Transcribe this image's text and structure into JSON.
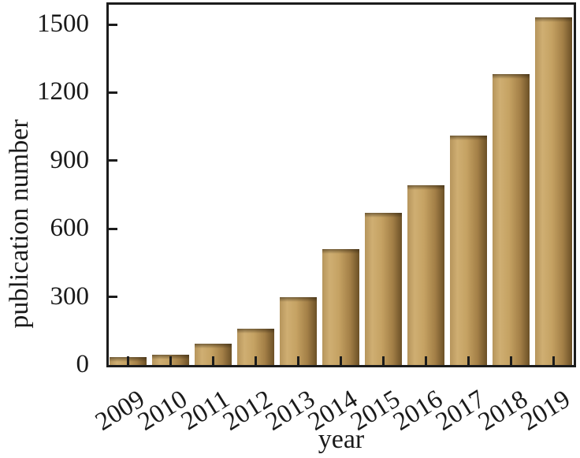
{
  "chart_data": {
    "type": "bar",
    "title": "",
    "xlabel": "year",
    "ylabel": "publication number",
    "categories": [
      "2009",
      "2010",
      "2011",
      "2012",
      "2013",
      "2014",
      "2015",
      "2016",
      "2017",
      "2018",
      "2019"
    ],
    "values": [
      35,
      45,
      95,
      160,
      300,
      510,
      670,
      790,
      1010,
      1280,
      1530
    ],
    "ylim": [
      0,
      1500
    ],
    "y_ticks": [
      0,
      300,
      600,
      900,
      1200,
      1500
    ],
    "grid": false,
    "legend_position": "none",
    "x_tick_label_rotation_deg": -32,
    "colors": {
      "bar_edge_left": "#b6955c",
      "bar_light": "#cfae72",
      "bar_mid": "#c5a263",
      "bar_shade": "#a37f47",
      "bar_dark": "#6b5026",
      "axis": "#1c1c1c",
      "text": "#1a1a1a",
      "background": "#ffffff"
    }
  }
}
